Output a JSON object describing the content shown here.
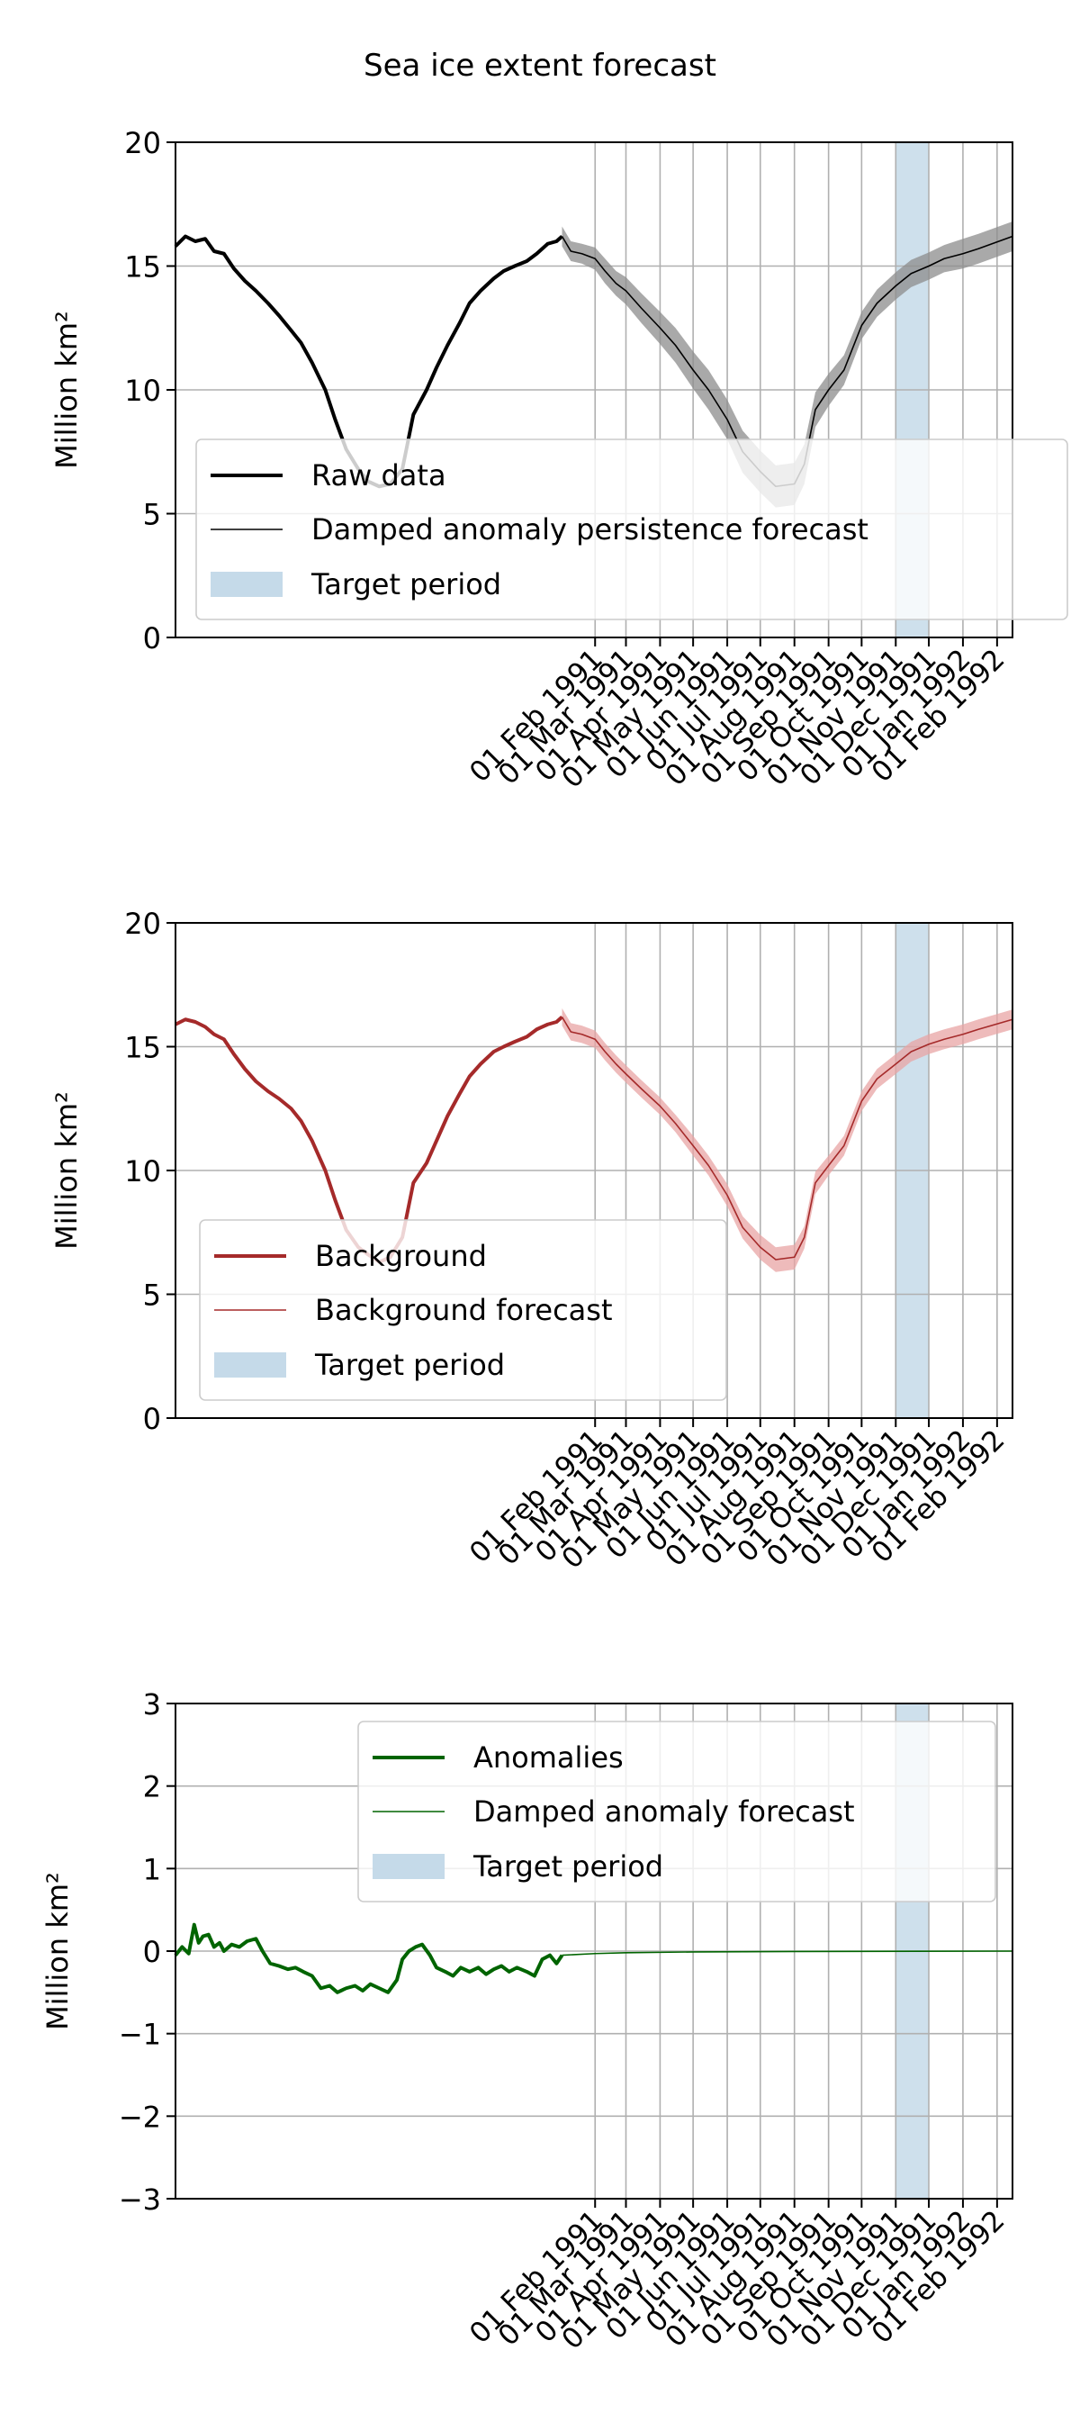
{
  "figure": {
    "title": "Sea ice extent forecast"
  },
  "x_tick_labels": [
    "01 Feb 1991",
    "01 Mar 1991",
    "01 Apr 1991",
    "01 May 1991",
    "01 Jun 1991",
    "01 Jul 1991",
    "01 Aug 1991",
    "01 Sep 1991",
    "01 Oct 1991",
    "01 Nov 1991",
    "01 Dec 1991",
    "01 Jan 1992",
    "01 Feb 1992"
  ],
  "chart_data": [
    {
      "type": "line",
      "title": "",
      "xlabel": "",
      "ylabel": "Million km²",
      "ylim": [
        0,
        20
      ],
      "yticks": [
        0,
        5,
        10,
        15,
        20
      ],
      "xlim": [
        "1990-01-16",
        "1992-02-15"
      ],
      "grid": true,
      "legend_position": "bottom-left",
      "target_period": [
        "1991-11-01",
        "1991-12-01"
      ],
      "target_label": "Target period",
      "series": [
        {
          "name": "Raw data",
          "color": "#000000",
          "style": "thick",
          "points": [
            [
              "1990-01-16",
              15.8
            ],
            [
              "1990-01-25",
              16.2
            ],
            [
              "1990-02-03",
              16.0
            ],
            [
              "1990-02-12",
              16.1
            ],
            [
              "1990-02-20",
              15.6
            ],
            [
              "1990-03-01",
              15.5
            ],
            [
              "1990-03-10",
              14.9
            ],
            [
              "1990-03-20",
              14.4
            ],
            [
              "1990-03-30",
              14.0
            ],
            [
              "1990-04-10",
              13.5
            ],
            [
              "1990-04-20",
              13.0
            ],
            [
              "1990-05-01",
              12.4
            ],
            [
              "1990-05-10",
              11.9
            ],
            [
              "1990-05-20",
              11.1
            ],
            [
              "1990-06-01",
              10.0
            ],
            [
              "1990-06-10",
              8.8
            ],
            [
              "1990-06-20",
              7.6
            ],
            [
              "1990-07-01",
              6.8
            ],
            [
              "1990-07-10",
              6.3
            ],
            [
              "1990-07-20",
              6.1
            ],
            [
              "1990-07-30",
              6.2
            ],
            [
              "1990-08-10",
              6.8
            ],
            [
              "1990-08-20",
              9.0
            ],
            [
              "1990-09-01",
              10.0
            ],
            [
              "1990-09-10",
              10.9
            ],
            [
              "1990-09-20",
              11.8
            ],
            [
              "1990-10-01",
              12.7
            ],
            [
              "1990-10-10",
              13.5
            ],
            [
              "1990-10-20",
              14.0
            ],
            [
              "1990-11-01",
              14.5
            ],
            [
              "1990-11-10",
              14.8
            ],
            [
              "1990-11-20",
              15.0
            ],
            [
              "1990-12-01",
              15.2
            ],
            [
              "1990-12-10",
              15.5
            ],
            [
              "1990-12-20",
              15.9
            ],
            [
              "1990-12-28",
              16.0
            ],
            [
              "1991-01-02",
              16.2
            ]
          ]
        },
        {
          "name": "Damped anomaly persistence forecast",
          "color": "#000000",
          "style": "thin",
          "band_color": "#8c8c8c",
          "points": [
            [
              "1991-01-02",
              16.2,
              0.4
            ],
            [
              "1991-01-10",
              15.6,
              0.4
            ],
            [
              "1991-01-20",
              15.5,
              0.4
            ],
            [
              "1991-02-01",
              15.3,
              0.45
            ],
            [
              "1991-02-10",
              14.8,
              0.5
            ],
            [
              "1991-02-20",
              14.3,
              0.5
            ],
            [
              "1991-03-01",
              14.0,
              0.55
            ],
            [
              "1991-03-15",
              13.3,
              0.6
            ],
            [
              "1991-04-01",
              12.5,
              0.65
            ],
            [
              "1991-04-15",
              11.8,
              0.7
            ],
            [
              "1991-05-01",
              10.8,
              0.75
            ],
            [
              "1991-05-15",
              10.0,
              0.8
            ],
            [
              "1991-06-01",
              8.8,
              0.8
            ],
            [
              "1991-06-15",
              7.5,
              0.85
            ],
            [
              "1991-07-01",
              6.7,
              0.85
            ],
            [
              "1991-07-15",
              6.1,
              0.85
            ],
            [
              "1991-08-01",
              6.2,
              0.85
            ],
            [
              "1991-08-10",
              7.0,
              0.8
            ],
            [
              "1991-08-20",
              9.2,
              0.7
            ],
            [
              "1991-09-01",
              10.0,
              0.65
            ],
            [
              "1991-09-15",
              10.8,
              0.6
            ],
            [
              "1991-10-01",
              12.6,
              0.55
            ],
            [
              "1991-10-15",
              13.5,
              0.55
            ],
            [
              "1991-11-01",
              14.2,
              0.55
            ],
            [
              "1991-11-15",
              14.7,
              0.55
            ],
            [
              "1991-12-01",
              15.0,
              0.55
            ],
            [
              "1991-12-15",
              15.3,
              0.55
            ],
            [
              "1992-01-01",
              15.5,
              0.6
            ],
            [
              "1992-01-15",
              15.7,
              0.6
            ],
            [
              "1992-02-15",
              16.2,
              0.6
            ]
          ]
        }
      ]
    },
    {
      "type": "line",
      "title": "",
      "xlabel": "",
      "ylabel": "Million km²",
      "ylim": [
        0,
        20
      ],
      "yticks": [
        0,
        5,
        10,
        15,
        20
      ],
      "xlim": [
        "1990-01-16",
        "1992-02-15"
      ],
      "grid": true,
      "legend_position": "bottom-left",
      "target_period": [
        "1991-11-01",
        "1991-12-01"
      ],
      "target_label": "Target period",
      "series": [
        {
          "name": "Background",
          "color": "#a52a2a",
          "style": "thick",
          "points": [
            [
              "1990-01-16",
              15.9
            ],
            [
              "1990-01-25",
              16.1
            ],
            [
              "1990-02-03",
              16.0
            ],
            [
              "1990-02-12",
              15.8
            ],
            [
              "1990-02-20",
              15.5
            ],
            [
              "1990-03-01",
              15.3
            ],
            [
              "1990-03-10",
              14.7
            ],
            [
              "1990-03-20",
              14.1
            ],
            [
              "1990-03-30",
              13.6
            ],
            [
              "1990-04-10",
              13.2
            ],
            [
              "1990-04-20",
              12.9
            ],
            [
              "1990-05-01",
              12.5
            ],
            [
              "1990-05-10",
              12.0
            ],
            [
              "1990-05-20",
              11.2
            ],
            [
              "1990-06-01",
              10.0
            ],
            [
              "1990-06-10",
              8.8
            ],
            [
              "1990-06-20",
              7.6
            ],
            [
              "1990-07-01",
              6.9
            ],
            [
              "1990-07-10",
              6.6
            ],
            [
              "1990-07-20",
              6.3
            ],
            [
              "1990-07-30",
              6.5
            ],
            [
              "1990-08-10",
              7.3
            ],
            [
              "1990-08-20",
              9.5
            ],
            [
              "1990-09-01",
              10.3
            ],
            [
              "1990-09-10",
              11.2
            ],
            [
              "1990-09-20",
              12.2
            ],
            [
              "1990-10-01",
              13.1
            ],
            [
              "1990-10-10",
              13.8
            ],
            [
              "1990-10-20",
              14.3
            ],
            [
              "1990-11-01",
              14.8
            ],
            [
              "1990-11-10",
              15.0
            ],
            [
              "1990-11-20",
              15.2
            ],
            [
              "1990-12-01",
              15.4
            ],
            [
              "1990-12-10",
              15.7
            ],
            [
              "1990-12-20",
              15.9
            ],
            [
              "1990-12-28",
              16.0
            ],
            [
              "1991-01-02",
              16.2
            ]
          ]
        },
        {
          "name": "Background forecast",
          "color": "#a52a2a",
          "style": "thin",
          "band_color": "#e8a4a4",
          "points": [
            [
              "1991-01-02",
              16.2,
              0.35
            ],
            [
              "1991-01-10",
              15.6,
              0.35
            ],
            [
              "1991-01-20",
              15.5,
              0.35
            ],
            [
              "1991-02-01",
              15.3,
              0.35
            ],
            [
              "1991-02-10",
              14.8,
              0.35
            ],
            [
              "1991-02-20",
              14.3,
              0.35
            ],
            [
              "1991-03-01",
              13.9,
              0.35
            ],
            [
              "1991-03-15",
              13.3,
              0.35
            ],
            [
              "1991-04-01",
              12.6,
              0.35
            ],
            [
              "1991-04-15",
              11.9,
              0.35
            ],
            [
              "1991-05-01",
              11.0,
              0.4
            ],
            [
              "1991-05-15",
              10.2,
              0.4
            ],
            [
              "1991-06-01",
              9.0,
              0.45
            ],
            [
              "1991-06-15",
              7.7,
              0.45
            ],
            [
              "1991-07-01",
              6.9,
              0.5
            ],
            [
              "1991-07-15",
              6.4,
              0.5
            ],
            [
              "1991-08-01",
              6.5,
              0.5
            ],
            [
              "1991-08-10",
              7.3,
              0.45
            ],
            [
              "1991-08-20",
              9.5,
              0.45
            ],
            [
              "1991-09-01",
              10.2,
              0.4
            ],
            [
              "1991-09-15",
              11.0,
              0.4
            ],
            [
              "1991-10-01",
              12.8,
              0.4
            ],
            [
              "1991-10-15",
              13.7,
              0.4
            ],
            [
              "1991-11-01",
              14.3,
              0.4
            ],
            [
              "1991-11-15",
              14.8,
              0.4
            ],
            [
              "1991-12-01",
              15.1,
              0.4
            ],
            [
              "1991-12-15",
              15.3,
              0.4
            ],
            [
              "1992-01-01",
              15.5,
              0.4
            ],
            [
              "1992-01-15",
              15.7,
              0.4
            ],
            [
              "1992-02-15",
              16.1,
              0.4
            ]
          ]
        }
      ]
    },
    {
      "type": "line",
      "title": "",
      "xlabel": "",
      "ylabel": "Million km²",
      "ylim": [
        -3,
        3
      ],
      "yticks": [
        -3,
        -2,
        -1,
        0,
        1,
        2,
        3
      ],
      "xlim": [
        "1990-01-16",
        "1992-02-15"
      ],
      "grid": true,
      "legend_position": "top-right",
      "target_period": [
        "1991-11-01",
        "1991-12-01"
      ],
      "target_label": "Target period",
      "series": [
        {
          "name": "Anomalies",
          "color": "#006400",
          "style": "thick",
          "points": [
            [
              "1990-01-16",
              -0.05
            ],
            [
              "1990-01-22",
              0.05
            ],
            [
              "1990-01-28",
              -0.03
            ],
            [
              "1990-02-02",
              0.32
            ],
            [
              "1990-02-06",
              0.1
            ],
            [
              "1990-02-10",
              0.18
            ],
            [
              "1990-02-15",
              0.2
            ],
            [
              "1990-02-20",
              0.05
            ],
            [
              "1990-02-25",
              0.1
            ],
            [
              "1990-03-01",
              0.0
            ],
            [
              "1990-03-08",
              0.08
            ],
            [
              "1990-03-15",
              0.05
            ],
            [
              "1990-03-22",
              0.12
            ],
            [
              "1990-03-30",
              0.15
            ],
            [
              "1990-04-05",
              0.0
            ],
            [
              "1990-04-12",
              -0.15
            ],
            [
              "1990-04-20",
              -0.18
            ],
            [
              "1990-04-28",
              -0.22
            ],
            [
              "1990-05-05",
              -0.2
            ],
            [
              "1990-05-12",
              -0.25
            ],
            [
              "1990-05-20",
              -0.3
            ],
            [
              "1990-05-28",
              -0.45
            ],
            [
              "1990-06-05",
              -0.42
            ],
            [
              "1990-06-12",
              -0.5
            ],
            [
              "1990-06-20",
              -0.45
            ],
            [
              "1990-06-28",
              -0.42
            ],
            [
              "1990-07-05",
              -0.48
            ],
            [
              "1990-07-12",
              -0.4
            ],
            [
              "1990-07-20",
              -0.45
            ],
            [
              "1990-07-28",
              -0.5
            ],
            [
              "1990-08-05",
              -0.35
            ],
            [
              "1990-08-10",
              -0.1
            ],
            [
              "1990-08-16",
              0.0
            ],
            [
              "1990-08-22",
              0.05
            ],
            [
              "1990-08-28",
              0.08
            ],
            [
              "1990-09-04",
              -0.05
            ],
            [
              "1990-09-10",
              -0.2
            ],
            [
              "1990-09-18",
              -0.25
            ],
            [
              "1990-09-25",
              -0.3
            ],
            [
              "1990-10-02",
              -0.2
            ],
            [
              "1990-10-10",
              -0.25
            ],
            [
              "1990-10-18",
              -0.2
            ],
            [
              "1990-10-25",
              -0.28
            ],
            [
              "1990-11-01",
              -0.22
            ],
            [
              "1990-11-08",
              -0.18
            ],
            [
              "1990-11-15",
              -0.25
            ],
            [
              "1990-11-22",
              -0.2
            ],
            [
              "1990-12-01",
              -0.25
            ],
            [
              "1990-12-08",
              -0.3
            ],
            [
              "1990-12-15",
              -0.1
            ],
            [
              "1990-12-22",
              -0.05
            ],
            [
              "1990-12-28",
              -0.15
            ],
            [
              "1991-01-02",
              -0.05
            ]
          ]
        },
        {
          "name": "Damped anomaly forecast",
          "color": "#006400",
          "style": "thin",
          "points": [
            [
              "1991-01-02",
              -0.05
            ],
            [
              "1991-02-01",
              -0.03
            ],
            [
              "1991-03-01",
              -0.02
            ],
            [
              "1991-05-01",
              -0.01
            ],
            [
              "1991-08-01",
              -0.005
            ],
            [
              "1992-02-15",
              0.0
            ]
          ]
        }
      ]
    }
  ]
}
